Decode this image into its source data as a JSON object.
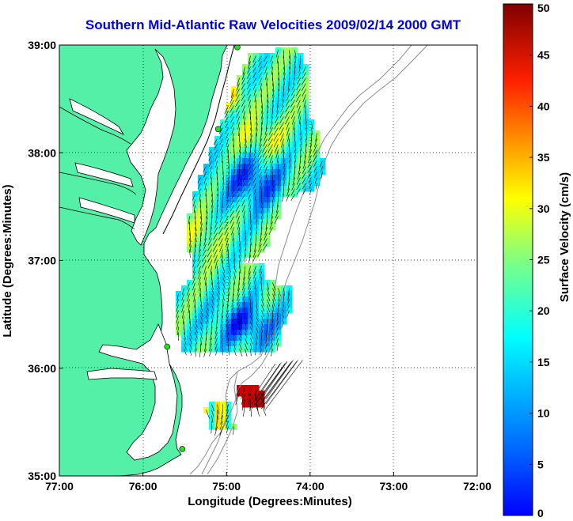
{
  "title": "Southern Mid-Atlantic Raw Velocities 2009/02/14 2000 GMT",
  "chart_data": {
    "type": "map",
    "xlabel": "Longitude (Degrees:Minutes)",
    "ylabel": "Latitude (Degrees:Minutes)",
    "x_ticks": [
      "77:00",
      "76:00",
      "75:00",
      "74:00",
      "73:00",
      "72:00"
    ],
    "y_ticks": [
      "39:00",
      "38:00",
      "37:00",
      "36:00",
      "35:00"
    ],
    "xlim": [
      -77,
      -72
    ],
    "ylim": [
      35,
      39
    ],
    "grid": "dotted",
    "colorbar": {
      "label": "Surface Velocity (cm/s)",
      "range": [
        0,
        50
      ],
      "ticks": [
        "50",
        "45",
        "40",
        "35",
        "30",
        "25",
        "20",
        "15",
        "10",
        "5",
        "0"
      ],
      "colormap": "jet"
    },
    "land_color": "#55f0a8",
    "stations": [
      {
        "lon": -74.87,
        "lat": 38.98
      },
      {
        "lon": -75.1,
        "lat": 38.22
      },
      {
        "lon": -75.71,
        "lat": 36.2
      },
      {
        "lon": -75.53,
        "lat": 35.25
      }
    ]
  }
}
